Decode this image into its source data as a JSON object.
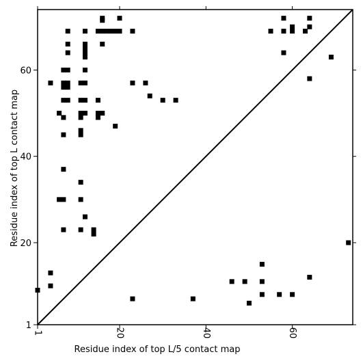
{
  "chart_data": {
    "type": "scatter",
    "xlabel": "Residue index of top L/5 contact map",
    "ylabel": "Residue index of top L contact map",
    "xlim": [
      1,
      74
    ],
    "ylim": [
      1,
      74
    ],
    "x_ticks": [
      1,
      20,
      40,
      60
    ],
    "y_ticks": [
      1,
      20,
      40,
      60
    ],
    "diagonal": true,
    "grid": false,
    "marker_color": "#000000",
    "series": [
      {
        "points": [
          [
            16,
            72
          ],
          [
            16,
            71.5
          ],
          [
            20,
            72
          ],
          [
            58,
            72
          ],
          [
            64,
            72
          ],
          [
            8,
            69
          ],
          [
            12,
            69
          ],
          [
            15,
            69
          ],
          [
            16,
            69
          ],
          [
            17,
            69
          ],
          [
            18,
            69
          ],
          [
            19,
            69
          ],
          [
            20,
            69
          ],
          [
            23,
            69
          ],
          [
            55,
            69
          ],
          [
            58,
            69
          ],
          [
            60,
            70
          ],
          [
            60,
            69
          ],
          [
            63,
            69
          ],
          [
            64,
            70
          ],
          [
            8,
            66
          ],
          [
            12,
            66
          ],
          [
            16,
            66
          ],
          [
            12,
            65
          ],
          [
            12,
            64
          ],
          [
            8,
            64
          ],
          [
            12,
            63
          ],
          [
            58,
            64
          ],
          [
            69,
            63
          ],
          [
            7,
            60
          ],
          [
            8,
            60
          ],
          [
            12,
            60
          ],
          [
            4,
            57
          ],
          [
            7,
            57
          ],
          [
            8,
            57
          ],
          [
            7,
            56
          ],
          [
            8,
            56
          ],
          [
            11,
            57
          ],
          [
            12,
            57
          ],
          [
            23,
            57
          ],
          [
            26,
            57
          ],
          [
            64,
            58
          ],
          [
            27,
            54
          ],
          [
            7,
            53
          ],
          [
            8,
            53
          ],
          [
            11,
            53
          ],
          [
            12,
            53
          ],
          [
            15,
            53
          ],
          [
            30,
            53
          ],
          [
            33,
            53
          ],
          [
            6,
            50
          ],
          [
            11,
            50
          ],
          [
            12,
            50
          ],
          [
            15,
            50
          ],
          [
            16,
            50
          ],
          [
            7,
            49
          ],
          [
            11,
            49
          ],
          [
            15,
            49
          ],
          [
            19,
            47
          ],
          [
            11,
            46
          ],
          [
            7,
            45
          ],
          [
            11,
            45
          ],
          [
            7,
            37
          ],
          [
            11,
            34
          ],
          [
            6,
            30
          ],
          [
            7,
            30
          ],
          [
            11,
            30
          ],
          [
            12,
            26
          ],
          [
            7,
            23
          ],
          [
            11,
            23
          ],
          [
            14,
            23
          ],
          [
            14,
            22
          ],
          [
            73,
            20
          ],
          [
            1,
            9
          ],
          [
            4,
            10
          ],
          [
            4,
            13
          ],
          [
            53,
            15
          ],
          [
            46,
            11
          ],
          [
            49,
            11
          ],
          [
            53,
            11
          ],
          [
            64,
            12
          ],
          [
            53,
            8
          ],
          [
            57,
            8
          ],
          [
            60,
            8
          ],
          [
            23,
            7
          ],
          [
            37,
            7
          ],
          [
            50,
            6
          ]
        ]
      }
    ]
  }
}
